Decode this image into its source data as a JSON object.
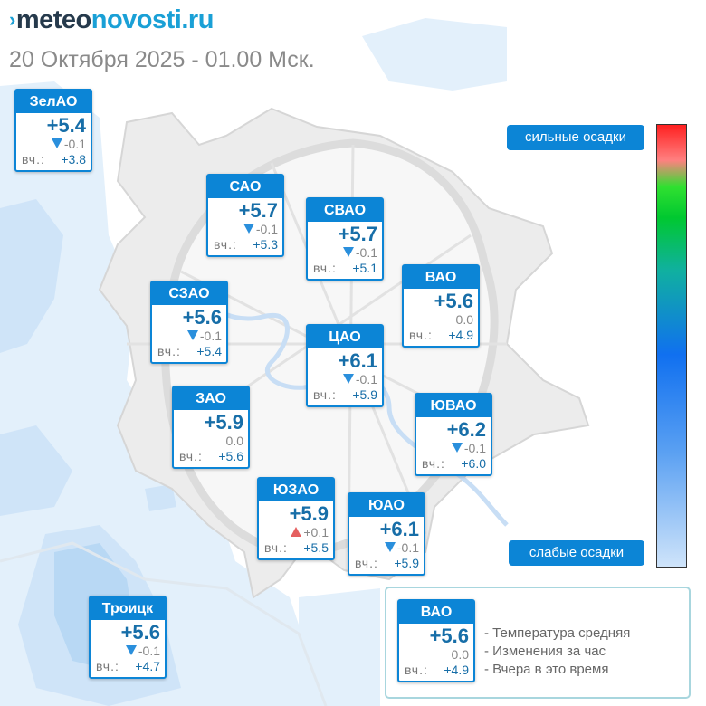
{
  "site": {
    "logo_prefix": "meteo",
    "logo_suffix": "novosti.ru",
    "datetime": "20 Октября 2025 - 01.00 Мск."
  },
  "yesterday_label": "вч.:",
  "districts": [
    {
      "name": "ЗелАО",
      "temp": "+5.4",
      "change": "-0.1",
      "trend": "down",
      "yesterday": "+3.8"
    },
    {
      "name": "САО",
      "temp": "+5.7",
      "change": "-0.1",
      "trend": "down",
      "yesterday": "+5.3"
    },
    {
      "name": "СВАО",
      "temp": "+5.7",
      "change": "-0.1",
      "trend": "down",
      "yesterday": "+5.1"
    },
    {
      "name": "ВАО",
      "temp": "+5.6",
      "change": "0.0",
      "trend": "none",
      "yesterday": "+4.9"
    },
    {
      "name": "СЗАО",
      "temp": "+5.6",
      "change": "-0.1",
      "trend": "down",
      "yesterday": "+5.4"
    },
    {
      "name": "ЦАО",
      "temp": "+6.1",
      "change": "-0.1",
      "trend": "down",
      "yesterday": "+5.9"
    },
    {
      "name": "ЗАО",
      "temp": "+5.9",
      "change": "0.0",
      "trend": "none",
      "yesterday": "+5.6"
    },
    {
      "name": "ЮВАО",
      "temp": "+6.2",
      "change": "-0.1",
      "trend": "down",
      "yesterday": "+6.0"
    },
    {
      "name": "ЮЗАО",
      "temp": "+5.9",
      "change": "+0.1",
      "trend": "up",
      "yesterday": "+5.5"
    },
    {
      "name": "ЮАО",
      "temp": "+6.1",
      "change": "-0.1",
      "trend": "down",
      "yesterday": "+5.9"
    },
    {
      "name": "Троицк",
      "temp": "+5.6",
      "change": "-0.1",
      "trend": "down",
      "yesterday": "+4.7"
    }
  ],
  "precip_scale": {
    "top_label": "сильные осадки",
    "bottom_label": "слабые осадки"
  },
  "legend": {
    "example": {
      "name": "ВАО",
      "temp": "+5.6",
      "change": "0.0",
      "yesterday": "+4.9"
    },
    "lines": [
      "- Температура средняя",
      "- Изменения за час",
      "- Вчера в это время"
    ]
  },
  "colors": {
    "card_blue": "#0c85d6",
    "temp_text": "#176ea8",
    "down_arrow": "#2a8fdc",
    "up_arrow": "#e56060",
    "precip_light": "#dcecfa"
  }
}
